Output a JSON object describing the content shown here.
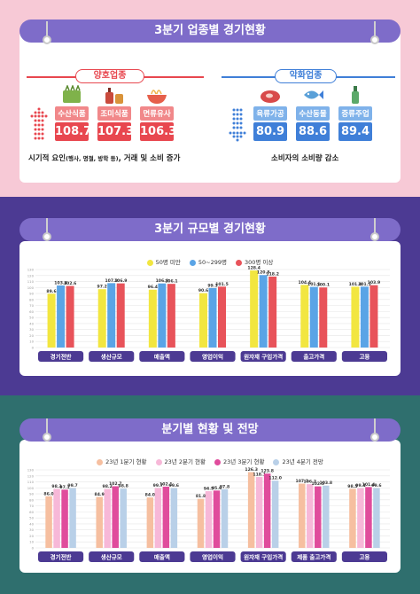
{
  "section1": {
    "title": "3분기 업종별 경기현황",
    "good": {
      "label": "양호업종",
      "items": [
        {
          "name": "수산식품",
          "value": "108.7",
          "icon": "fish-can-icon"
        },
        {
          "name": "조미식품",
          "value": "107.3",
          "icon": "sauce-bottle-icon"
        },
        {
          "name": "면류유사",
          "value": "106.3",
          "icon": "noodle-bowl-icon"
        }
      ],
      "note_main": "시기적 요인",
      "note_sub": "(행사, 명절, 방학 등)",
      "note_tail": ", 거래 및 소비 증가",
      "color": "#e8474f"
    },
    "bad": {
      "label": "악화업종",
      "items": [
        {
          "name": "육류가공",
          "value": "80.9",
          "icon": "meat-icon"
        },
        {
          "name": "수산동물",
          "value": "88.6",
          "icon": "fish-icon"
        },
        {
          "name": "증류주업",
          "value": "89.4",
          "icon": "soju-bottle-icon"
        }
      ],
      "note": "소비자의 소비량 감소",
      "color": "#3f7fd8"
    }
  },
  "section2": {
    "title": "3분기 규모별 경기현황"
  },
  "section3": {
    "title": "분기별 현황 및 전망"
  },
  "chart_data": [
    {
      "type": "bar",
      "title": "3분기 규모별 경기현황",
      "categories": [
        "경기전반",
        "생산규모",
        "매출액",
        "영업이익",
        "원자재 구입가격",
        "출고가격",
        "고용"
      ],
      "series": [
        {
          "name": "50명 미만",
          "color": "#f2e640",
          "values": [
            89.6,
            97.2,
            96.4,
            90.6,
            128.4,
            104.4,
            101.4
          ]
        },
        {
          "name": "50~299명",
          "color": "#5aa4e6",
          "values": [
            103.4,
            107.3,
            106.8,
            99.1,
            120.8,
            101.1,
            101.5
          ]
        },
        {
          "name": "300명 이상",
          "color": "#e8535a",
          "values": [
            102.6,
            106.9,
            106.1,
            101.5,
            118.2,
            100.1,
            103.9
          ]
        }
      ],
      "ylim": [
        0,
        130
      ],
      "legend": "top-center"
    },
    {
      "type": "bar",
      "title": "분기별 현황 및 전망",
      "categories": [
        "경기전반",
        "생산규모",
        "매출액",
        "영업이익",
        "원자재 구입가격",
        "제품 출고가격",
        "고용"
      ],
      "series": [
        {
          "name": "23년 1분기 현황",
          "color": "#f6bfa0",
          "values": [
            86.0,
            84.9,
            84.0,
            81.8,
            126.3,
            107.1,
            98.5
          ]
        },
        {
          "name": "23년 2분기 현황",
          "color": "#f7b8d8",
          "values": [
            98.3,
            98.2,
            99.7,
            94.5,
            118.1,
            106.2,
            99.4
          ]
        },
        {
          "name": "23년 3분기 현황",
          "color": "#e04c9c",
          "values": [
            97.1,
            102.7,
            102.1,
            95.6,
            123.8,
            102.5,
            101.4
          ]
        },
        {
          "name": "23년 4분기 전망",
          "color": "#b9d0e8",
          "values": [
            99.7,
            98.8,
            99.6,
            97.8,
            112.0,
            103.8,
            99.6
          ]
        }
      ],
      "ylim": [
        0,
        130
      ],
      "legend": "top-center"
    }
  ]
}
